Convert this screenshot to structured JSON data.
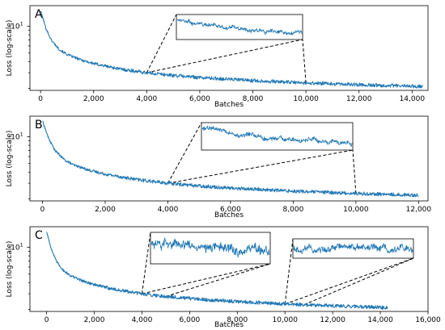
{
  "chart_data": [
    {
      "type": "line",
      "panel": "A",
      "xlabel": "Batches",
      "ylabel": "Loss (log-scale)",
      "yscale": "log",
      "xlim": [
        -400,
        14600
      ],
      "ylim": [
        1.9,
        17
      ],
      "xticks": [
        0,
        2000,
        4000,
        6000,
        8000,
        10000,
        12000,
        14000
      ],
      "xtick_labels": [
        "0",
        "2,000",
        "4,000",
        "6,000",
        "8,000",
        "10,000",
        "12,000",
        "14,000"
      ],
      "yticks": [
        10
      ],
      "ytick_labels": [
        "10^1"
      ],
      "series": [
        {
          "color": "#1f77b4",
          "x": [
            0,
            200,
            400,
            700,
            1000,
            1500,
            2000,
            3000,
            4000,
            5000,
            6000,
            8000,
            10000,
            12000,
            14400
          ],
          "y": [
            15,
            9.5,
            7.0,
            5.5,
            4.8,
            4.2,
            3.8,
            3.3,
            3.0,
            2.8,
            2.65,
            2.45,
            2.3,
            2.2,
            2.1
          ]
        }
      ],
      "zooms": [
        {
          "x_range": [
            4000,
            10000
          ],
          "noise": 0.03
        }
      ],
      "grid": false
    },
    {
      "type": "line",
      "panel": "B",
      "xlabel": "Batches",
      "ylabel": "Loss (log-scale)",
      "yscale": "log",
      "xlim": [
        -400,
        12300
      ],
      "ylim": [
        1.9,
        17
      ],
      "xticks": [
        0,
        2000,
        4000,
        6000,
        8000,
        10000,
        12000
      ],
      "xtick_labels": [
        "0",
        "2,000",
        "4,000",
        "6,000",
        "8,000",
        "10,000",
        "12,000"
      ],
      "yticks": [
        10
      ],
      "ytick_labels": [
        "10^1"
      ],
      "series": [
        {
          "color": "#1f77b4",
          "x": [
            0,
            200,
            400,
            700,
            1000,
            1500,
            2000,
            3000,
            4000,
            5000,
            6000,
            8000,
            10000,
            12000
          ],
          "y": [
            15,
            9.5,
            7.0,
            5.5,
            4.8,
            4.2,
            3.8,
            3.3,
            3.0,
            2.8,
            2.65,
            2.45,
            2.3,
            2.2
          ]
        }
      ],
      "zooms": [
        {
          "x_range": [
            4000,
            10000
          ],
          "noise": 0.03
        }
      ],
      "grid": false
    },
    {
      "type": "line",
      "panel": "C",
      "xlabel": "Batches",
      "ylabel": "Loss (log-scale)",
      "yscale": "log",
      "xlim": [
        -700,
        16000
      ],
      "ylim": [
        1.9,
        17
      ],
      "xticks": [
        0,
        2000,
        4000,
        6000,
        8000,
        10000,
        12000,
        14000,
        16000
      ],
      "xtick_labels": [
        "0",
        "2,000",
        "4,000",
        "6,000",
        "8,000",
        "10,000",
        "12,000",
        "14,000",
        "16,000"
      ],
      "yticks": [
        10
      ],
      "ytick_labels": [
        "10^1"
      ],
      "series": [
        {
          "color": "#1f77b4",
          "x": [
            0,
            200,
            400,
            700,
            1000,
            1500,
            2000,
            3000,
            4000,
            5000,
            6000,
            8000,
            10000,
            12000,
            14300
          ],
          "y": [
            15,
            9.5,
            7.0,
            5.5,
            4.8,
            4.2,
            3.8,
            3.3,
            3.0,
            2.8,
            2.65,
            2.45,
            2.3,
            2.2,
            2.1
          ]
        }
      ],
      "zooms": [
        {
          "x_range": [
            4000,
            5000
          ],
          "noise": 0.04
        },
        {
          "x_range": [
            10000,
            10800
          ],
          "noise": 0.035
        }
      ],
      "grid": false
    }
  ]
}
